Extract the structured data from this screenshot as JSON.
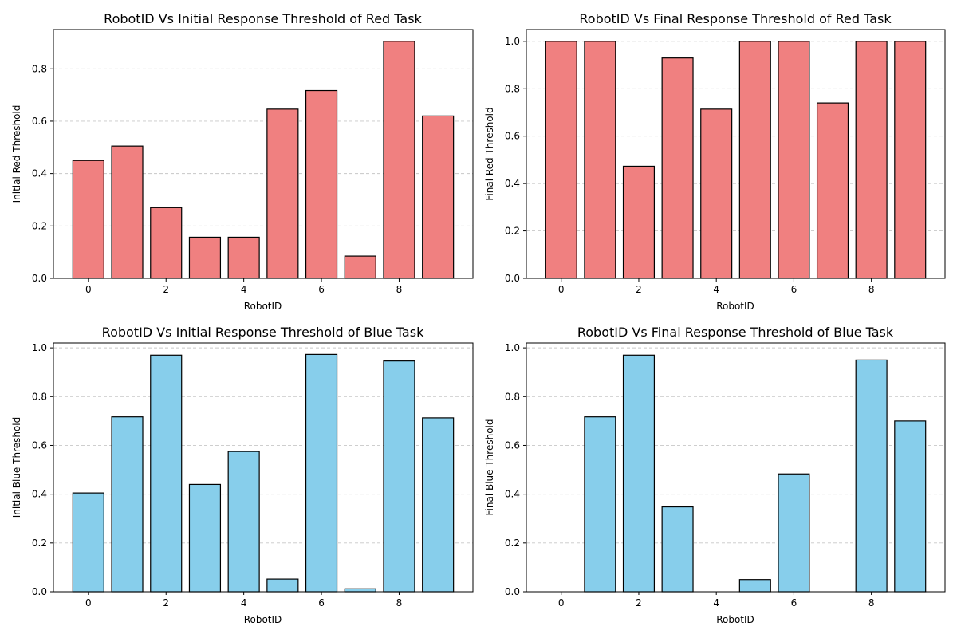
{
  "chart_data": [
    {
      "type": "bar",
      "title": "RobotID Vs Initial Response Threshold of Red Task",
      "xlabel": "RobotID",
      "ylabel": "Initial Red Threshold",
      "categories": [
        0,
        1,
        2,
        3,
        4,
        5,
        6,
        7,
        8,
        9
      ],
      "values": [
        0.45,
        0.505,
        0.27,
        0.157,
        0.157,
        0.646,
        0.717,
        0.085,
        0.905,
        0.62
      ],
      "xlim": [
        -0.9,
        9.9
      ],
      "ylim": [
        0,
        0.95
      ],
      "xticks": [
        0,
        2,
        4,
        6,
        8
      ],
      "xtick_labels": [
        "0",
        "2",
        "4",
        "6",
        "8"
      ],
      "yticks": [
        0.0,
        0.2,
        0.4,
        0.6,
        0.8
      ],
      "ytick_labels": [
        "0.0",
        "0.2",
        "0.4",
        "0.6",
        "0.8"
      ],
      "bar_color": "#f08080",
      "edge_color": "#000000",
      "grid": "y dashed"
    },
    {
      "type": "bar",
      "title": "RobotID Vs Final Response Threshold of Red Task",
      "xlabel": "RobotID",
      "ylabel": "Final Red Threshold",
      "categories": [
        0,
        1,
        2,
        3,
        4,
        5,
        6,
        7,
        8,
        9
      ],
      "values": [
        1.0,
        1.0,
        0.473,
        0.93,
        0.714,
        1.0,
        1.0,
        0.74,
        1.0,
        1.0
      ],
      "xlim": [
        -0.9,
        9.9
      ],
      "ylim": [
        0,
        1.05
      ],
      "xticks": [
        0,
        2,
        4,
        6,
        8
      ],
      "xtick_labels": [
        "0",
        "2",
        "4",
        "6",
        "8"
      ],
      "yticks": [
        0.0,
        0.2,
        0.4,
        0.6,
        0.8,
        1.0
      ],
      "ytick_labels": [
        "0.0",
        "0.2",
        "0.4",
        "0.6",
        "0.8",
        "1.0"
      ],
      "bar_color": "#f08080",
      "edge_color": "#000000",
      "grid": "y dashed"
    },
    {
      "type": "bar",
      "title": "RobotID Vs Initial Response Threshold of Blue Task",
      "xlabel": "RobotID",
      "ylabel": "Initial Blue Threshold",
      "categories": [
        0,
        1,
        2,
        3,
        4,
        5,
        6,
        7,
        8,
        9
      ],
      "values": [
        0.405,
        0.717,
        0.97,
        0.44,
        0.575,
        0.052,
        0.973,
        0.012,
        0.946,
        0.713
      ],
      "xlim": [
        -0.9,
        9.9
      ],
      "ylim": [
        0,
        1.02
      ],
      "xticks": [
        0,
        2,
        4,
        6,
        8
      ],
      "xtick_labels": [
        "0",
        "2",
        "4",
        "6",
        "8"
      ],
      "yticks": [
        0.0,
        0.2,
        0.4,
        0.6,
        0.8,
        1.0
      ],
      "ytick_labels": [
        "0.0",
        "0.2",
        "0.4",
        "0.6",
        "0.8",
        "1.0"
      ],
      "bar_color": "#87ceeb",
      "edge_color": "#000000",
      "grid": "y dashed"
    },
    {
      "type": "bar",
      "title": "RobotID Vs Final Response Threshold of Blue Task",
      "xlabel": "RobotID",
      "ylabel": "Final Blue Threshold",
      "categories": [
        0,
        1,
        2,
        3,
        4,
        5,
        6,
        7,
        8,
        9
      ],
      "values": [
        0.0,
        0.717,
        0.97,
        0.348,
        0.0,
        0.05,
        0.483,
        0.0,
        0.95,
        0.7
      ],
      "xlim": [
        -0.9,
        9.9
      ],
      "ylim": [
        0,
        1.02
      ],
      "xticks": [
        0,
        2,
        4,
        6,
        8
      ],
      "xtick_labels": [
        "0",
        "2",
        "4",
        "6",
        "8"
      ],
      "yticks": [
        0.0,
        0.2,
        0.4,
        0.6,
        0.8,
        1.0
      ],
      "ytick_labels": [
        "0.0",
        "0.2",
        "0.4",
        "0.6",
        "0.8",
        "1.0"
      ],
      "bar_color": "#87ceeb",
      "edge_color": "#000000",
      "grid": "y dashed"
    }
  ]
}
